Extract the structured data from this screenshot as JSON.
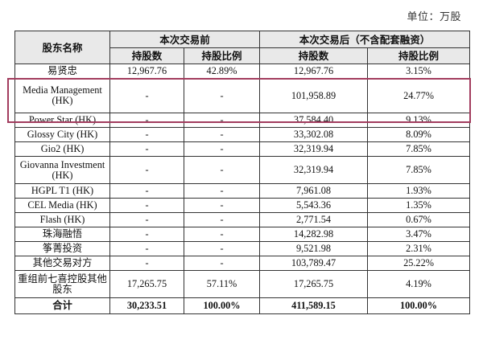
{
  "unit_label": "单位：万股",
  "header": {
    "name_col": "股东名称",
    "before_group": "本次交易前",
    "after_group": "本次交易后（不含配套融资）",
    "before_shares": "持股数",
    "before_ratio": "持股比例",
    "after_shares": "持股数",
    "after_ratio": "持股比例"
  },
  "rows": [
    {
      "name": "易贤忠",
      "before_shares": "12,967.76",
      "before_ratio": "42.89%",
      "after_shares": "12,967.76",
      "after_ratio": "3.15%"
    },
    {
      "name": "Media Management (HK)",
      "before_shares": "-",
      "before_ratio": "-",
      "after_shares": "101,958.89",
      "after_ratio": "24.77%"
    },
    {
      "name": "Power Star (HK)",
      "before_shares": "-",
      "before_ratio": "-",
      "after_shares": "37,584.40",
      "after_ratio": "9.13%"
    },
    {
      "name": "Glossy City (HK)",
      "before_shares": "-",
      "before_ratio": "-",
      "after_shares": "33,302.08",
      "after_ratio": "8.09%"
    },
    {
      "name": "Gio2 (HK)",
      "before_shares": "-",
      "before_ratio": "-",
      "after_shares": "32,319.94",
      "after_ratio": "7.85%"
    },
    {
      "name": "Giovanna Investment (HK)",
      "before_shares": "-",
      "before_ratio": "-",
      "after_shares": "32,319.94",
      "after_ratio": "7.85%"
    },
    {
      "name": "HGPL T1 (HK)",
      "before_shares": "-",
      "before_ratio": "-",
      "after_shares": "7,961.08",
      "after_ratio": "1.93%"
    },
    {
      "name": "CEL Media (HK)",
      "before_shares": "-",
      "before_ratio": "-",
      "after_shares": "5,543.36",
      "after_ratio": "1.35%"
    },
    {
      "name": "Flash (HK)",
      "before_shares": "-",
      "before_ratio": "-",
      "after_shares": "2,771.54",
      "after_ratio": "0.67%"
    },
    {
      "name": "珠海融悟",
      "before_shares": "-",
      "before_ratio": "-",
      "after_shares": "14,282.98",
      "after_ratio": "3.47%"
    },
    {
      "name": "筝菁投资",
      "before_shares": "-",
      "before_ratio": "-",
      "after_shares": "9,521.98",
      "after_ratio": "2.31%"
    },
    {
      "name": "其他交易对方",
      "before_shares": "-",
      "before_ratio": "-",
      "after_shares": "103,789.47",
      "after_ratio": "25.22%"
    },
    {
      "name": "重组前七喜控股其他股东",
      "before_shares": "17,265.75",
      "before_ratio": "57.11%",
      "after_shares": "17,265.75",
      "after_ratio": "4.19%"
    }
  ],
  "total": {
    "name": "合计",
    "before_shares": "30,233.51",
    "before_ratio": "100.00%",
    "after_shares": "411,589.15",
    "after_ratio": "100.00%"
  },
  "colors": {
    "highlight_border": "#a23c5e",
    "header_background": "#e9e9e9",
    "grid_line": "#333333"
  }
}
